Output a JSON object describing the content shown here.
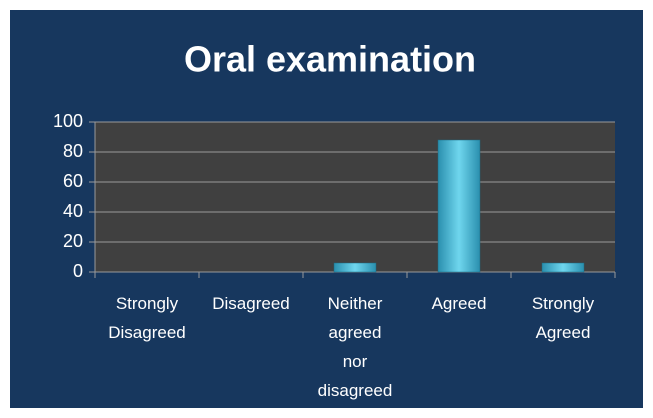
{
  "chart_data": {
    "type": "bar",
    "title": "Oral examination",
    "categories": [
      "Strongly Disagreed",
      "Disagreed",
      "Neither agreed nor disagreed",
      "Agreed",
      "Strongly Agreed"
    ],
    "values": [
      0,
      0,
      6,
      88,
      6
    ],
    "color": "#3fb8d8",
    "ylim": [
      0,
      100
    ],
    "yticks": [
      0,
      20,
      40,
      60,
      80,
      100
    ],
    "grid": true
  }
}
